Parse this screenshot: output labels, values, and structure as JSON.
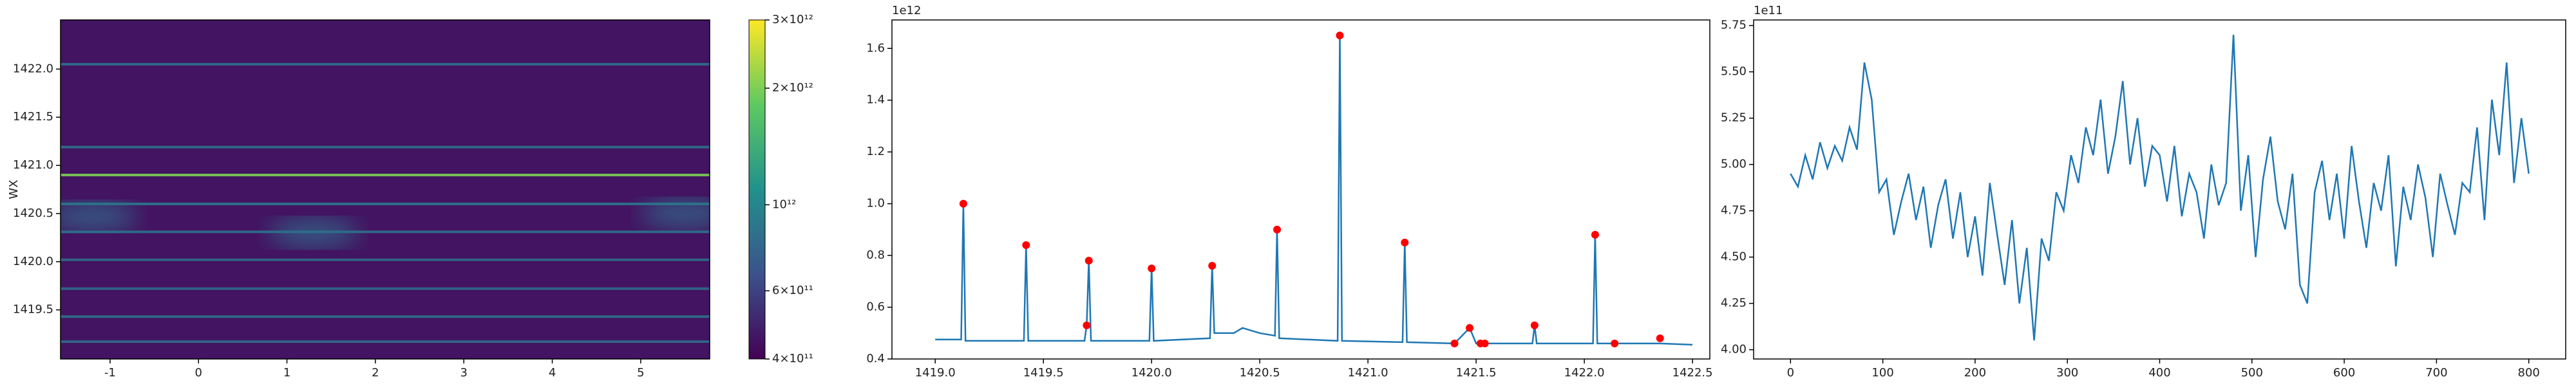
{
  "chart_data": [
    {
      "type": "heatmap",
      "ylabel": "WX",
      "xlim": [
        -1.56,
        5.78
      ],
      "xticks": [
        -1,
        0,
        1,
        2,
        3,
        4,
        5
      ],
      "ylim": [
        1418.99,
        1422.51
      ],
      "yticks": [
        {
          "value": 1419.5,
          "label": "1419.5"
        },
        {
          "value": 1420,
          "label": "1420.0"
        },
        1420.5,
        {
          "value": 1421,
          "label": "1421.0"
        },
        1421.5,
        {
          "value": 1422,
          "label": "1422.0"
        }
      ],
      "color_scale": "log",
      "clim": [
        400000000000,
        3000000000000
      ],
      "colormap": [
        "#440154",
        "#3b528b",
        "#21918c",
        "#5ec962",
        "#fde725"
      ],
      "cticks": [
        {
          "value": 400000000000,
          "label": "4×10¹¹"
        },
        {
          "value": 600000000000,
          "label": "6×10¹¹"
        },
        {
          "value": 1000000000000,
          "label": "10¹²"
        },
        {
          "value": 2000000000000,
          "label": "2×10¹²"
        },
        {
          "value": 3000000000000,
          "label": "3×10¹²"
        }
      ],
      "background_value": 450000000000,
      "bands": [
        {
          "y": 1419.17,
          "value": 800000000000
        },
        {
          "y": 1419.43,
          "value": 850000000000
        },
        {
          "y": 1419.72,
          "value": 800000000000
        },
        {
          "y": 1420.02,
          "value": 800000000000
        },
        {
          "y": 1420.31,
          "value": 850000000000
        },
        {
          "y": 1420.6,
          "value": 900000000000
        },
        {
          "y": 1420.9,
          "value": 2000000000000
        },
        {
          "y": 1421.19,
          "value": 850000000000
        },
        {
          "y": 1422.05,
          "value": 850000000000
        }
      ],
      "blobs": [
        {
          "x": -1.2,
          "y": 1420.47,
          "value": 800000000000
        },
        {
          "x": 1.3,
          "y": 1420.3,
          "value": 800000000000
        },
        {
          "x": 5.5,
          "y": 1420.5,
          "value": 800000000000
        }
      ]
    },
    {
      "type": "line",
      "offset_label": "1e12",
      "color": "#1f77b4",
      "xlim": [
        1418.8,
        1422.58
      ],
      "xticks": [
        {
          "value": 1419,
          "label": "1419.0"
        },
        1419.5,
        {
          "value": 1420,
          "label": "1420.0"
        },
        1420.5,
        {
          "value": 1421,
          "label": "1421.0"
        },
        1421.5,
        {
          "value": 1422,
          "label": "1422.0"
        },
        1422.5
      ],
      "ylim": [
        0.4,
        1.71
      ],
      "yticks": [
        0.4,
        0.6,
        0.8,
        {
          "value": 1,
          "label": "1.0"
        },
        1.2,
        1.4,
        1.6
      ],
      "x": [
        1419.0,
        1419.12,
        1419.13,
        1419.14,
        1419.41,
        1419.42,
        1419.43,
        1419.69,
        1419.7,
        1419.71,
        1419.72,
        1419.99,
        1420.0,
        1420.01,
        1420.27,
        1420.28,
        1420.29,
        1420.38,
        1420.42,
        1420.5,
        1420.57,
        1420.58,
        1420.59,
        1420.86,
        1420.87,
        1420.88,
        1421.16,
        1421.17,
        1421.18,
        1421.4,
        1421.47,
        1421.5,
        1421.76,
        1421.77,
        1421.78,
        1422.04,
        1422.05,
        1422.06,
        1422.35,
        1422.5
      ],
      "values": [
        0.475,
        0.475,
        1.0,
        0.47,
        0.47,
        0.84,
        0.47,
        0.47,
        0.53,
        0.78,
        0.47,
        0.47,
        0.75,
        0.47,
        0.48,
        0.76,
        0.5,
        0.5,
        0.52,
        0.5,
        0.49,
        0.9,
        0.48,
        0.47,
        1.65,
        0.47,
        0.465,
        0.85,
        0.465,
        0.46,
        0.52,
        0.46,
        0.46,
        0.53,
        0.46,
        0.46,
        0.88,
        0.46,
        0.46,
        0.455
      ],
      "peaks": {
        "color": "#ff0000",
        "x": [
          1419.13,
          1419.42,
          1419.7,
          1419.71,
          1420.0,
          1420.28,
          1420.58,
          1420.87,
          1421.17,
          1421.4,
          1421.47,
          1421.52,
          1421.54,
          1421.77,
          1422.05,
          1422.14,
          1422.35
        ],
        "values": [
          1.0,
          0.84,
          0.53,
          0.78,
          0.75,
          0.76,
          0.9,
          1.65,
          0.85,
          0.46,
          0.52,
          0.46,
          0.46,
          0.53,
          0.88,
          0.46,
          0.48
        ]
      }
    },
    {
      "type": "line",
      "offset_label": "1e11",
      "color": "#1f77b4",
      "xlim": [
        -40,
        840
      ],
      "xticks": [
        0,
        100,
        200,
        300,
        400,
        500,
        600,
        700,
        800
      ],
      "ylim": [
        3.95,
        5.78
      ],
      "yticks": [
        {
          "value": 4,
          "label": "4.00"
        },
        4.25,
        {
          "value": 4.5,
          "label": "4.50"
        },
        4.75,
        {
          "value": 5,
          "label": "5.00"
        },
        5.25,
        {
          "value": 5.5,
          "label": "5.50"
        },
        5.75
      ],
      "x": [
        0,
        8,
        16,
        24,
        32,
        40,
        48,
        56,
        64,
        72,
        80,
        88,
        96,
        104,
        112,
        120,
        128,
        136,
        144,
        152,
        160,
        168,
        176,
        184,
        192,
        200,
        208,
        216,
        224,
        232,
        240,
        248,
        256,
        264,
        272,
        280,
        288,
        296,
        304,
        312,
        320,
        328,
        336,
        344,
        352,
        360,
        368,
        376,
        384,
        392,
        400,
        408,
        416,
        424,
        432,
        440,
        448,
        456,
        464,
        472,
        480,
        488,
        496,
        504,
        512,
        520,
        528,
        536,
        544,
        552,
        560,
        568,
        576,
        584,
        592,
        600,
        608,
        616,
        624,
        632,
        640,
        648,
        656,
        664,
        672,
        680,
        688,
        696,
        704,
        712,
        720,
        728,
        736,
        744,
        752,
        760,
        768,
        776,
        784,
        792,
        800
      ],
      "values": [
        4.95,
        4.88,
        5.05,
        4.92,
        5.12,
        4.98,
        5.1,
        5.02,
        5.2,
        5.08,
        5.55,
        5.35,
        4.85,
        4.92,
        4.62,
        4.8,
        4.95,
        4.7,
        4.88,
        4.55,
        4.78,
        4.92,
        4.6,
        4.85,
        4.5,
        4.72,
        4.4,
        4.9,
        4.62,
        4.35,
        4.7,
        4.25,
        4.55,
        4.05,
        4.6,
        4.48,
        4.85,
        4.75,
        5.05,
        4.9,
        5.2,
        5.05,
        5.35,
        4.95,
        5.15,
        5.45,
        5.0,
        5.25,
        4.88,
        5.1,
        5.05,
        4.8,
        5.1,
        4.72,
        4.95,
        4.85,
        4.6,
        5.0,
        4.78,
        4.9,
        5.7,
        4.75,
        5.05,
        4.5,
        4.92,
        5.15,
        4.8,
        4.65,
        4.95,
        4.35,
        4.25,
        4.85,
        5.02,
        4.7,
        4.95,
        4.6,
        5.1,
        4.8,
        4.55,
        4.9,
        4.75,
        5.05,
        4.45,
        4.88,
        4.7,
        5.0,
        4.82,
        4.5,
        4.95,
        4.78,
        4.62,
        4.9,
        4.85,
        5.2,
        4.7,
        5.35,
        5.05,
        5.55,
        4.9,
        5.25,
        4.95
      ]
    }
  ]
}
